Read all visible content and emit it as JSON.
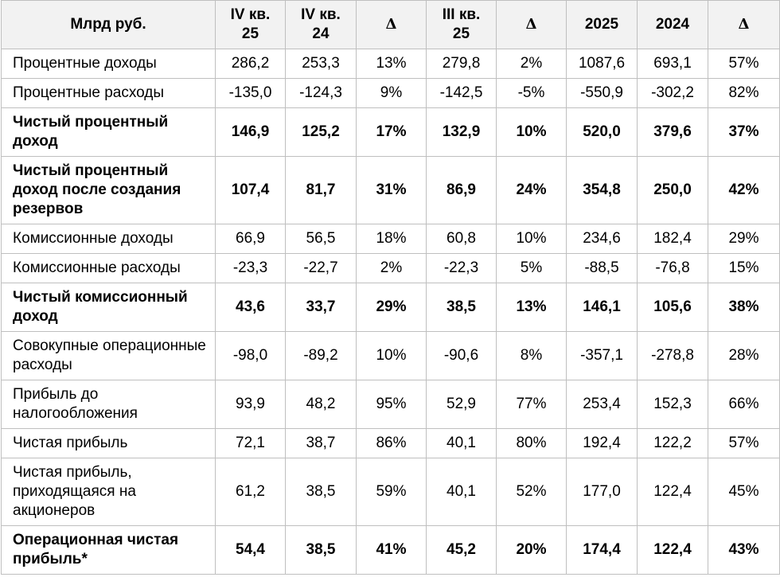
{
  "table": {
    "header": [
      "Млрд руб.",
      "IV кв. 25",
      "IV кв. 24",
      "Δ",
      "III кв. 25",
      "Δ",
      "2025",
      "2024",
      "Δ"
    ],
    "header_lines": [
      [
        "Млрд руб."
      ],
      [
        "IV кв.",
        "25"
      ],
      [
        "IV кв.",
        "24"
      ],
      [
        "Δ"
      ],
      [
        "III кв.",
        "25"
      ],
      [
        "Δ"
      ],
      [
        "2025"
      ],
      [
        "2024"
      ],
      [
        "Δ"
      ]
    ],
    "rows": [
      {
        "label": "Процентные доходы",
        "bold": false,
        "cells": [
          "286,2",
          "253,3",
          "13%",
          "279,8",
          "2%",
          "1087,6",
          "693,1",
          "57%"
        ]
      },
      {
        "label": "Процентные расходы",
        "bold": false,
        "cells": [
          "-135,0",
          "-124,3",
          "9%",
          "-142,5",
          "-5%",
          "-550,9",
          "-302,2",
          "82%"
        ]
      },
      {
        "label": "Чистый процентный доход",
        "bold": true,
        "cells": [
          "146,9",
          "125,2",
          "17%",
          "132,9",
          "10%",
          "520,0",
          "379,6",
          "37%"
        ]
      },
      {
        "label": "Чистый процентный доход после создания резервов",
        "bold": true,
        "cells": [
          "107,4",
          "81,7",
          "31%",
          "86,9",
          "24%",
          "354,8",
          "250,0",
          "42%"
        ]
      },
      {
        "label": "Комиссионные доходы",
        "bold": false,
        "cells": [
          "66,9",
          "56,5",
          "18%",
          "60,8",
          "10%",
          "234,6",
          "182,4",
          "29%"
        ]
      },
      {
        "label": "Комиссионные расходы",
        "bold": false,
        "cells": [
          "-23,3",
          "-22,7",
          "2%",
          "-22,3",
          "5%",
          "-88,5",
          "-76,8",
          "15%"
        ]
      },
      {
        "label": "Чистый комиссионный доход",
        "bold": true,
        "cells": [
          "43,6",
          "33,7",
          "29%",
          "38,5",
          "13%",
          "146,1",
          "105,6",
          "38%"
        ]
      },
      {
        "label": "Совокупные операционные расходы",
        "bold": false,
        "cells": [
          "-98,0",
          "-89,2",
          "10%",
          "-90,6",
          "8%",
          "-357,1",
          "-278,8",
          "28%"
        ]
      },
      {
        "label": "Прибыль до налогообложения",
        "bold": false,
        "cells": [
          "93,9",
          "48,2",
          "95%",
          "52,9",
          "77%",
          "253,4",
          "152,3",
          "66%"
        ]
      },
      {
        "label": "Чистая прибыль",
        "bold": false,
        "cells": [
          "72,1",
          "38,7",
          "86%",
          "40,1",
          "80%",
          "192,4",
          "122,2",
          "57%"
        ]
      },
      {
        "label": "Чистая прибыль, приходящаяся на акционеров",
        "bold": false,
        "cells": [
          "61,2",
          "38,5",
          "59%",
          "40,1",
          "52%",
          "177,0",
          "122,4",
          "45%"
        ]
      },
      {
        "label": "Операционная чистая прибыль*",
        "bold": true,
        "cells": [
          "54,4",
          "38,5",
          "41%",
          "45,2",
          "20%",
          "174,4",
          "122,4",
          "43%"
        ]
      }
    ]
  }
}
